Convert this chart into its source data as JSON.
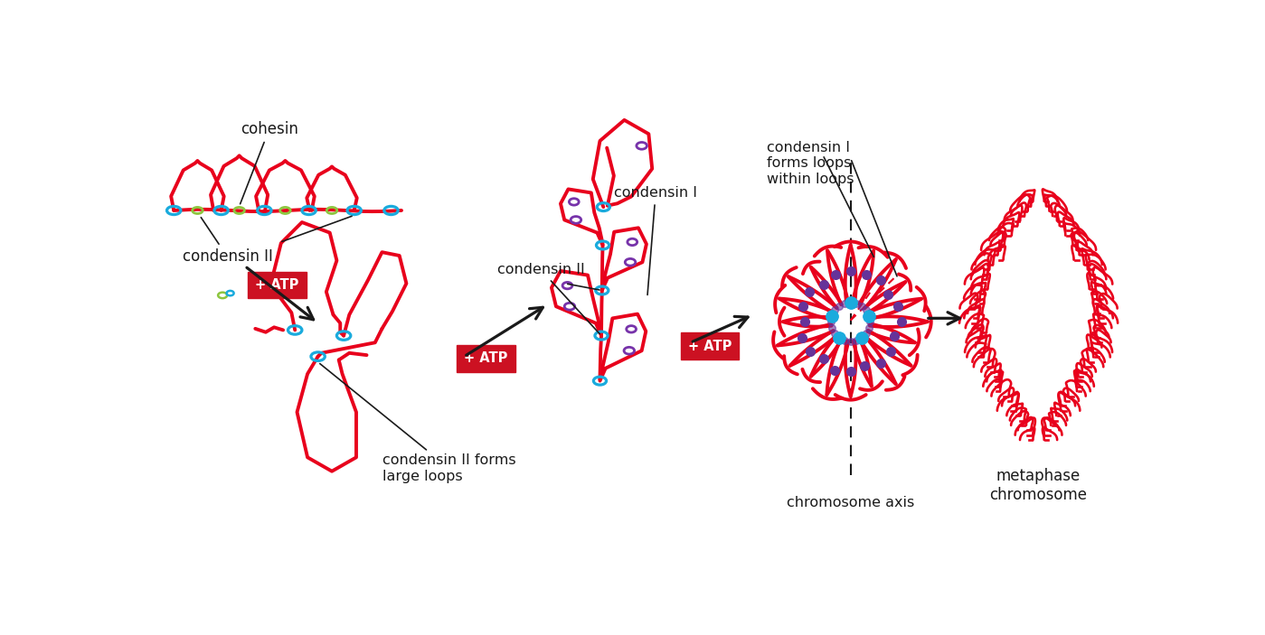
{
  "bg_color": "#ffffff",
  "red": "#e8001c",
  "blue": "#1aabdd",
  "green": "#8dc63f",
  "purple": "#7733aa",
  "cyan_dot": "#1aabdd",
  "purple_dot": "#663399",
  "black": "#1a1a1a",
  "atp_bg": "#cc1122",
  "atp_text": "#ffffff",
  "labels": {
    "cohesin": "cohesin",
    "condensin_II_top": "condensin II",
    "condensin_I_mid": "condensin I",
    "condensin_II_mid": "condensin II",
    "condensin_II_forms": "condensin II forms\nlarge loops",
    "condensin_I_forms": "condensin I\nforms loops\nwithin loops",
    "chromosome_axis": "chromosome axis",
    "metaphase": "metaphase\nchromosome"
  }
}
